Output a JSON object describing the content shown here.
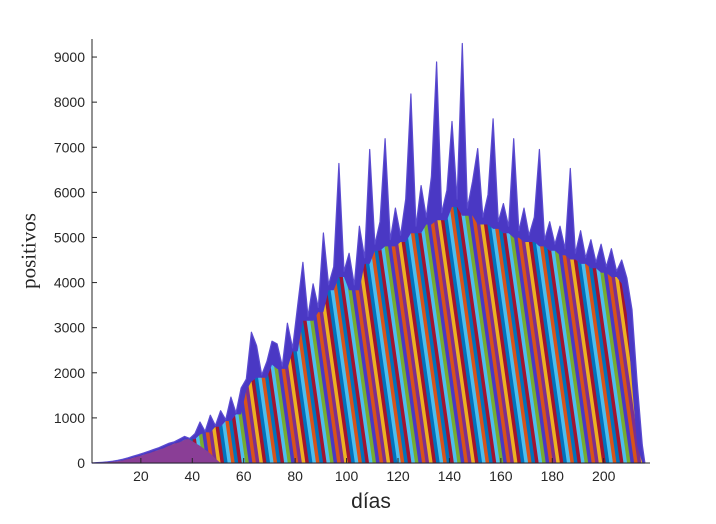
{
  "figure": {
    "background": "#ffffff"
  },
  "chart_data": {
    "type": "area",
    "stacked": true,
    "style": "stacked area of many daily cohort series (colors cycle, totals envelope spiky)",
    "title": "",
    "xlabel": "días",
    "ylabel": "positivos",
    "xlim": [
      1,
      218
    ],
    "ylim": [
      0,
      9400
    ],
    "xticks": [
      20,
      40,
      60,
      80,
      100,
      120,
      140,
      160,
      180,
      200
    ],
    "yticks": [
      0,
      1000,
      2000,
      3000,
      4000,
      5000,
      6000,
      7000,
      8000,
      9000
    ],
    "grid": false,
    "legend": "none",
    "envelope": {
      "x": [
        1,
        3,
        5,
        7,
        9,
        11,
        13,
        15,
        17,
        19,
        21,
        23,
        25,
        27,
        29,
        31,
        33,
        35,
        37,
        39,
        41,
        43,
        45,
        47,
        49,
        51,
        53,
        55,
        57,
        59,
        61,
        63,
        65,
        67,
        69,
        71,
        73,
        75,
        77,
        79,
        81,
        83,
        85,
        87,
        89,
        91,
        93,
        95,
        97,
        99,
        101,
        103,
        105,
        107,
        109,
        111,
        113,
        115,
        117,
        119,
        121,
        123,
        125,
        127,
        129,
        131,
        133,
        135,
        137,
        139,
        141,
        143,
        145,
        147,
        149,
        151,
        153,
        155,
        157,
        159,
        161,
        163,
        165,
        167,
        169,
        171,
        173,
        175,
        177,
        179,
        181,
        183,
        185,
        187,
        189,
        191,
        193,
        195,
        197,
        199,
        201,
        203,
        205,
        207,
        209,
        211,
        213,
        215,
        216
      ],
      "total": [
        0,
        8,
        15,
        25,
        40,
        60,
        85,
        115,
        150,
        185,
        220,
        260,
        300,
        340,
        390,
        440,
        470,
        530,
        590,
        545,
        650,
        910,
        700,
        1060,
        830,
        1160,
        960,
        1460,
        1110,
        1660,
        1860,
        2900,
        2600,
        1950,
        2250,
        2700,
        2640,
        2150,
        3100,
        2550,
        3500,
        4450,
        3250,
        3970,
        3450,
        5100,
        3950,
        4350,
        6640,
        4250,
        4650,
        3950,
        5250,
        4550,
        6950,
        4850,
        5350,
        7190,
        4950,
        5650,
        5050,
        5850,
        8180,
        5250,
        6150,
        5450,
        6350,
        8890,
        5550,
        6050,
        7570,
        5850,
        9300,
        5650,
        6250,
        6970,
        5450,
        5950,
        7630,
        5350,
        5750,
        5250,
        7190,
        5150,
        5650,
        5050,
        5450,
        6950,
        4950,
        5350,
        4850,
        5250,
        4750,
        6530,
        4650,
        5150,
        4550,
        4950,
        4450,
        4850,
        4350,
        4750,
        4250,
        4500,
        4100,
        3400,
        1800,
        400,
        0
      ]
    },
    "peak": {
      "day": 145,
      "value": 9300
    },
    "base_region": {
      "end_day": 51,
      "color": "#8a3e96"
    },
    "colors": {
      "palette": [
        "#0072BD",
        "#D95319",
        "#EDB120",
        "#7E2F8E",
        "#77AC30",
        "#4DBEEE",
        "#A2142F"
      ],
      "stripe_cycle": [
        "#0072BD",
        "#A2142F",
        "#4DBEEE",
        "#77AC30",
        "#4a38c4",
        "#D95319",
        "#7E2F8E",
        "#EDB120",
        "#A2142F",
        "#0072BD",
        "#4DBEEE",
        "#D95319"
      ],
      "envelope": "#4a38c4",
      "envelope_edge": "#5b4bd0",
      "base_region": "#8a3e96",
      "axis": "#262626",
      "background": "#ffffff"
    }
  }
}
